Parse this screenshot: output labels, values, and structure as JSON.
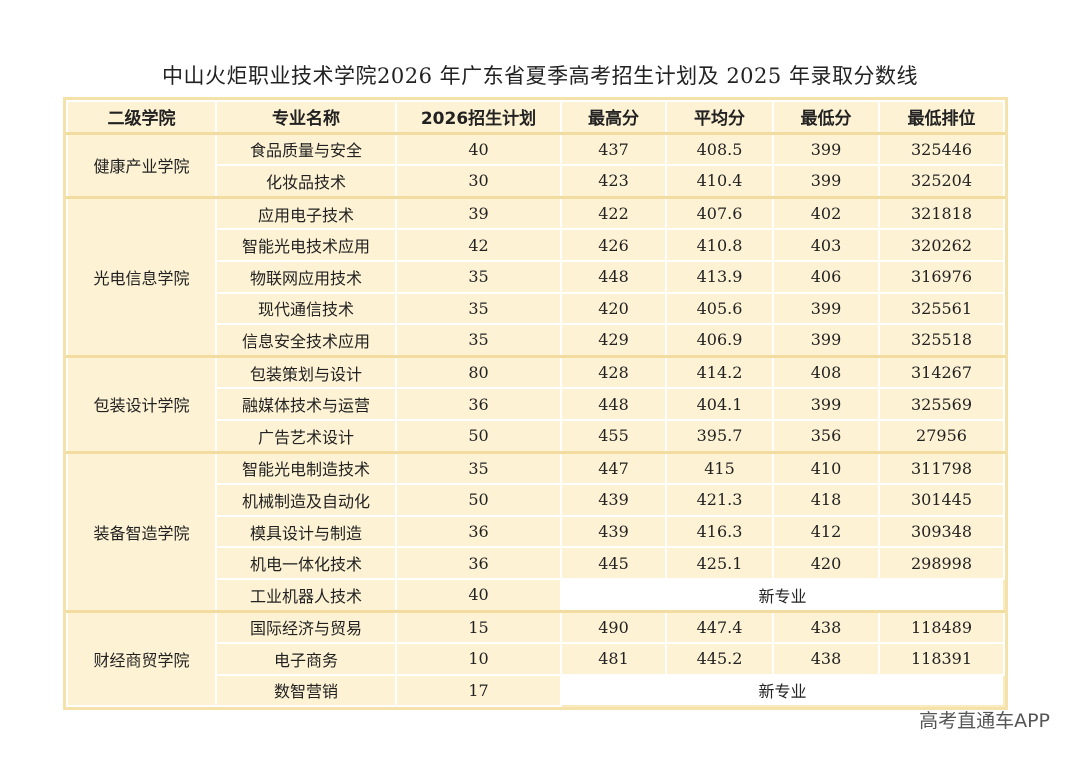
{
  "title": "中山火炬职业技术学院2026 年广东省夏季高考招生计划及 2025 年录取分数线",
  "table": {
    "header": [
      "二级学院",
      "专业名称",
      "2026招生计划",
      "最高分",
      "平均分",
      "最低分",
      "最低排位"
    ],
    "groups": [
      {
        "college": "健康产业学院",
        "rows": [
          [
            "食品质量与安全",
            40,
            437,
            408.5,
            399,
            325446
          ],
          [
            "化妆品技术",
            30,
            423,
            410.4,
            399,
            325204
          ]
        ]
      },
      {
        "college": "光电信息学院",
        "rows": [
          [
            "应用电子技术",
            39,
            422,
            407.6,
            402,
            321818
          ],
          [
            "智能光电技术应用",
            42,
            426,
            410.8,
            403,
            320262
          ],
          [
            "物联网应用技术",
            35,
            448,
            413.9,
            406,
            316976
          ],
          [
            "现代通信技术",
            35,
            420,
            405.6,
            399,
            325561
          ],
          [
            "信息安全技术应用",
            35,
            429,
            406.9,
            399,
            325518
          ]
        ]
      },
      {
        "college": "包装设计学院",
        "rows": [
          [
            "包装策划与设计",
            80,
            428,
            414.2,
            408,
            314267
          ],
          [
            "融媒体技术与运营",
            36,
            448,
            404.1,
            399,
            325569
          ],
          [
            "广告艺术设计",
            50,
            455,
            395.7,
            356,
            27956
          ]
        ]
      },
      {
        "college": "装备智造学院",
        "rows": [
          [
            "智能光电制造技术",
            35,
            447,
            415,
            410,
            311798
          ],
          [
            "机械制造及自动化",
            50,
            439,
            421.3,
            418,
            301445
          ],
          [
            "模具设计与制造",
            36,
            439,
            416.3,
            412,
            309348
          ],
          [
            "机电一体化技术",
            36,
            445,
            425.1,
            420,
            298998
          ],
          [
            "工业机器人技术",
            40,
            "新专业"
          ]
        ]
      },
      {
        "college": "财经商贸学院",
        "rows": [
          [
            "国际经济与贸易",
            15,
            490,
            447.4,
            438,
            118489
          ],
          [
            "电子商务",
            10,
            481,
            445.2,
            438,
            118391
          ],
          [
            "数智营销",
            17,
            "新专业"
          ]
        ]
      }
    ]
  },
  "watermark": "高考直通车APP"
}
